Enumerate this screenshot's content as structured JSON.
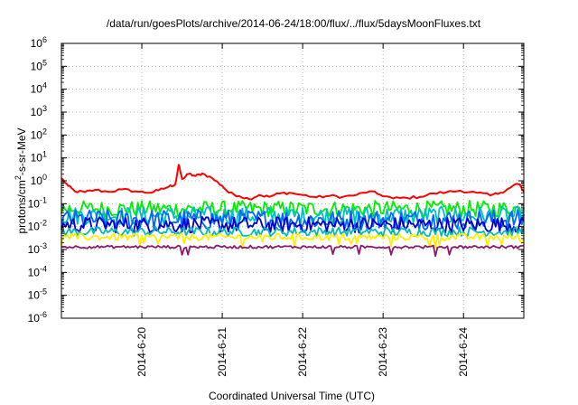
{
  "chart_data": {
    "type": "line",
    "title": "/data/run/goesPlots/archive/2014-06-24/18:00/flux/../flux/5daysMoonFluxes.txt",
    "xlabel": "Coordinated Universal Time (UTC)",
    "ylabel_parts": {
      "base": "protons/cm",
      "sup": "2",
      "rest": "-s-sr-MeV"
    },
    "y_scale": "log",
    "ylim": [
      1e-06,
      1000000.0
    ],
    "xlim": [
      "2014-06-19 00:00",
      "2014-06-24 18:00"
    ],
    "grid": true,
    "x_ticks": [
      {
        "label": "2014-6-20",
        "date": "2014-06-20"
      },
      {
        "label": "2014-6-21",
        "date": "2014-06-21"
      },
      {
        "label": "2014-6-22",
        "date": "2014-06-22"
      },
      {
        "label": "2014-6-23",
        "date": "2014-06-23"
      },
      {
        "label": "2014-6-24",
        "date": "2014-06-24"
      }
    ],
    "y_ticks": [
      {
        "base": "10",
        "exp": "-6"
      },
      {
        "base": "10",
        "exp": "-5"
      },
      {
        "base": "10",
        "exp": "-4"
      },
      {
        "base": "10",
        "exp": "-3"
      },
      {
        "base": "10",
        "exp": "-2"
      },
      {
        "base": "10",
        "exp": "-1"
      },
      {
        "base": "10",
        "exp": "0"
      },
      {
        "base": "10",
        "exp": "1"
      },
      {
        "base": "10",
        "exp": "2"
      },
      {
        "base": "10",
        "exp": "3"
      },
      {
        "base": "10",
        "exp": "4"
      },
      {
        "base": "10",
        "exp": "5"
      },
      {
        "base": "10",
        "exp": "6"
      }
    ],
    "series": [
      {
        "color": "#ff0000",
        "points": [
          [
            "2014-06-19 00:00",
            1.3
          ],
          [
            "2014-06-19 02:00",
            0.6
          ],
          [
            "2014-06-19 04:00",
            0.35
          ],
          [
            "2014-06-19 07:00",
            0.32
          ],
          [
            "2014-06-19 10:00",
            0.4
          ],
          [
            "2014-06-19 14:00",
            0.33
          ],
          [
            "2014-06-19 18:00",
            0.42
          ],
          [
            "2014-06-19 22:00",
            0.35
          ],
          [
            "2014-06-20 02:00",
            0.3
          ],
          [
            "2014-06-20 05:00",
            0.38
          ],
          [
            "2014-06-20 08:00",
            0.55
          ],
          [
            "2014-06-20 10:00",
            0.7
          ],
          [
            "2014-06-20 11:00",
            5.0
          ],
          [
            "2014-06-20 12:00",
            1.2
          ],
          [
            "2014-06-20 14:00",
            2.0
          ],
          [
            "2014-06-20 16:00",
            1.6
          ],
          [
            "2014-06-20 18:00",
            2.1
          ],
          [
            "2014-06-20 21:00",
            1.3
          ],
          [
            "2014-06-21 00:00",
            0.6
          ],
          [
            "2014-06-21 02:00",
            0.3
          ],
          [
            "2014-06-21 05:00",
            0.22
          ],
          [
            "2014-06-21 08:00",
            0.16
          ],
          [
            "2014-06-21 11:00",
            0.24
          ],
          [
            "2014-06-21 14:00",
            0.2
          ],
          [
            "2014-06-21 17:00",
            0.28
          ],
          [
            "2014-06-21 20:00",
            0.3
          ],
          [
            "2014-06-22 00:00",
            0.24
          ],
          [
            "2014-06-22 04:00",
            0.19
          ],
          [
            "2014-06-22 08:00",
            0.22
          ],
          [
            "2014-06-22 12:00",
            0.2
          ],
          [
            "2014-06-22 16:00",
            0.24
          ],
          [
            "2014-06-22 20:00",
            0.35
          ],
          [
            "2014-06-22 23:00",
            0.25
          ],
          [
            "2014-06-23 03:00",
            0.17
          ],
          [
            "2014-06-23 07:00",
            0.18
          ],
          [
            "2014-06-23 11:00",
            0.2
          ],
          [
            "2014-06-23 15:00",
            0.28
          ],
          [
            "2014-06-23 19:00",
            0.32
          ],
          [
            "2014-06-23 23:00",
            0.37
          ],
          [
            "2014-06-24 04:00",
            0.3
          ],
          [
            "2014-06-24 08:00",
            0.23
          ],
          [
            "2014-06-24 11:00",
            0.3
          ],
          [
            "2014-06-24 14:00",
            0.5
          ],
          [
            "2014-06-24 16:00",
            0.75
          ],
          [
            "2014-06-24 17:00",
            0.6
          ],
          [
            "2014-06-24 18:00",
            0.32
          ]
        ]
      },
      {
        "color": "#00ee00",
        "level": 0.06,
        "spread": 0.35
      },
      {
        "color": "#00c0c0",
        "level": 0.03,
        "spread": 0.4
      },
      {
        "color": "#0066ff",
        "level": 0.02,
        "spread": 0.45
      },
      {
        "color": "#0000cc",
        "level": 0.012,
        "spread": 0.35
      },
      {
        "color": "#00bbbb",
        "level": 0.006,
        "spread": 0.2
      },
      {
        "color": "#ffee00",
        "level": 0.0035,
        "spread": 0.15
      },
      {
        "color": "#8b1a6b",
        "level": 0.0013,
        "spread": 0.06
      }
    ]
  }
}
